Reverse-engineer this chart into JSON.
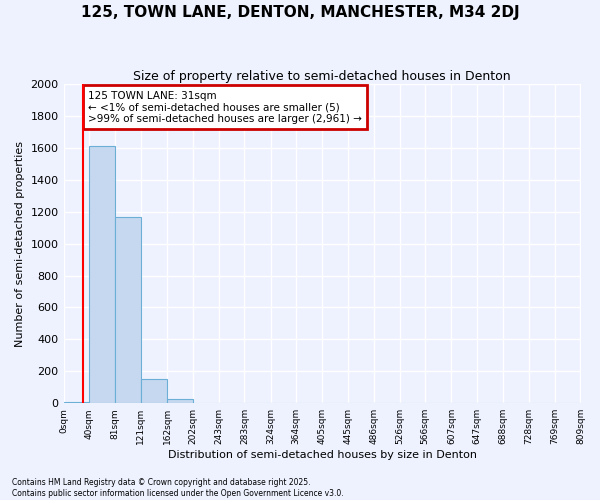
{
  "title": "125, TOWN LANE, DENTON, MANCHESTER, M34 2DJ",
  "subtitle": "Size of property relative to semi-detached houses in Denton",
  "xlabel": "Distribution of semi-detached houses by size in Denton",
  "ylabel": "Number of semi-detached properties",
  "bin_labels": [
    "0sqm",
    "40sqm",
    "81sqm",
    "121sqm",
    "162sqm",
    "202sqm",
    "243sqm",
    "283sqm",
    "324sqm",
    "364sqm",
    "405sqm",
    "445sqm",
    "486sqm",
    "526sqm",
    "566sqm",
    "607sqm",
    "647sqm",
    "688sqm",
    "728sqm",
    "769sqm",
    "809sqm"
  ],
  "bar_values": [
    5,
    1614,
    1170,
    150,
    27,
    0,
    0,
    0,
    0,
    0,
    0,
    0,
    0,
    0,
    0,
    0,
    0,
    0,
    0,
    0
  ],
  "bar_color": "#C5D8F0",
  "bar_edge_color": "#6BAED6",
  "red_line_x": 31,
  "annotation_text": "125 TOWN LANE: 31sqm\n← <1% of semi-detached houses are smaller (5)\n>99% of semi-detached houses are larger (2,961) →",
  "annotation_box_color": "white",
  "annotation_box_edge_color": "#CC0000",
  "ylim": [
    0,
    2000
  ],
  "yticks": [
    0,
    200,
    400,
    600,
    800,
    1000,
    1200,
    1400,
    1600,
    1800,
    2000
  ],
  "background_color": "#EEF2FF",
  "grid_color": "white",
  "footer_line1": "Contains HM Land Registry data © Crown copyright and database right 2025.",
  "footer_line2": "Contains public sector information licensed under the Open Government Licence v3.0."
}
